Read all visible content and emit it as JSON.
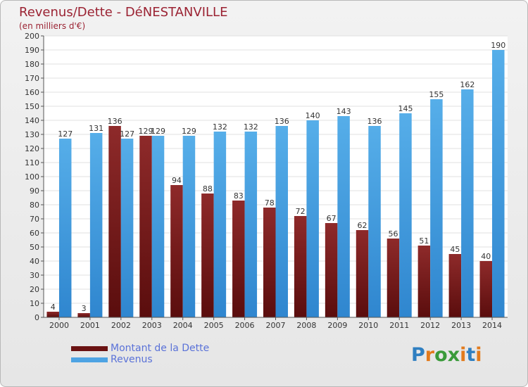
{
  "title": "Revenus/Dette - DéNESTANVILLE",
  "subtitle": "(en milliers d'€)",
  "logo": {
    "letters": [
      "P",
      "r",
      "o",
      "x",
      "i",
      "t",
      "i"
    ],
    "colors": [
      "#2f7fc1",
      "#e27a1c",
      "#3a9a3a",
      "#3a9a3a",
      "#e27a1c",
      "#2f7fc1",
      "#e27a1c"
    ]
  },
  "colors": {
    "dette": "#7b1b1b",
    "revenus": "#4ea3e3"
  },
  "chart_data": {
    "type": "bar",
    "categories": [
      "2000",
      "2001",
      "2002",
      "2003",
      "2004",
      "2005",
      "2006",
      "2007",
      "2008",
      "2009",
      "2010",
      "2011",
      "2012",
      "2013",
      "2014"
    ],
    "series": [
      {
        "name": "Montant de la Dette",
        "values": [
          4,
          3,
          136,
          129,
          94,
          88,
          83,
          78,
          72,
          67,
          62,
          56,
          51,
          45,
          40
        ]
      },
      {
        "name": "Revenus",
        "values": [
          127,
          131,
          127,
          129,
          129,
          132,
          132,
          136,
          140,
          143,
          136,
          145,
          155,
          162,
          190
        ]
      }
    ],
    "ylim": [
      0,
      200
    ],
    "yticks": [
      0,
      10,
      20,
      30,
      40,
      50,
      60,
      70,
      80,
      90,
      100,
      110,
      120,
      130,
      140,
      150,
      160,
      170,
      180,
      190,
      200
    ],
    "grid": true,
    "legend": "bottom-left"
  }
}
